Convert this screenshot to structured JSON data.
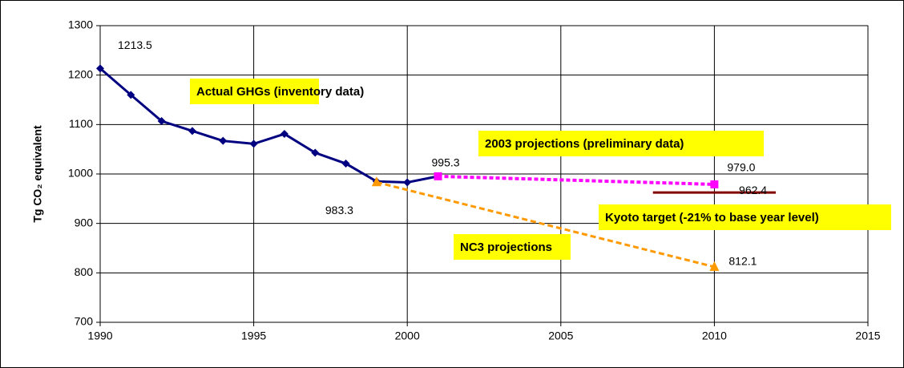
{
  "chart_data": {
    "type": "line",
    "y_label": "Tg CO₂ equivalent",
    "xlim": [
      1990,
      2015
    ],
    "xticks": [
      1990,
      1995,
      2000,
      2005,
      2010,
      2015
    ],
    "ylim": [
      700,
      1300
    ],
    "yticks": [
      700,
      800,
      900,
      1000,
      1100,
      1200,
      1300
    ],
    "grid": true,
    "series": [
      {
        "name": "Actual GHGs (inventory data)",
        "color": "#000080",
        "marker": "diamond",
        "dash": "solid",
        "x": [
          1990,
          1991,
          1992,
          1993,
          1994,
          1995,
          1996,
          1997,
          1998,
          1999,
          2000,
          2001
        ],
        "values": [
          1213.5,
          1160,
          1107,
          1087,
          1067,
          1061,
          1081,
          1043,
          1021,
          985,
          983,
          995.3
        ],
        "value_labels": [
          "1213.5",
          null,
          null,
          null,
          null,
          null,
          null,
          null,
          null,
          null,
          null,
          "995.3"
        ]
      },
      {
        "name": "2003 projections (preliminary data)",
        "color": "#ff00ff",
        "marker": "square",
        "dash": "dot",
        "x": [
          2001,
          2010
        ],
        "values": [
          995.3,
          979.0
        ],
        "value_labels": [
          null,
          "979.0"
        ]
      },
      {
        "name": "Kyoto target (-21%  to base year level)",
        "color": "#800000",
        "marker": "none",
        "dash": "solid",
        "x": [
          2008,
          2012
        ],
        "values": [
          962.4,
          962.4
        ],
        "value_labels": [
          null,
          "962.4"
        ]
      },
      {
        "name": "NC3 projections",
        "color": "#ff9900",
        "marker": "triangle",
        "dash": "dash",
        "x": [
          1999,
          2010
        ],
        "values": [
          983.3,
          812.1
        ],
        "value_labels": [
          "983.3",
          "812.1"
        ]
      }
    ]
  }
}
